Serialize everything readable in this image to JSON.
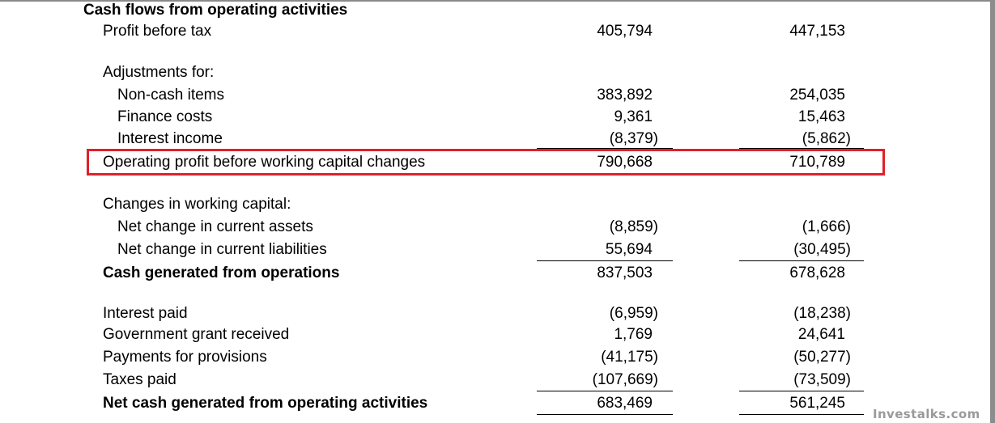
{
  "statement": {
    "title": "Cash flows from operating activities",
    "rows": {
      "profit_before_tax": {
        "label": "Profit before tax",
        "v1": "405,794",
        "v2": "447,153"
      },
      "adjustments_header": {
        "label": "Adjustments for:"
      },
      "non_cash_items": {
        "label": "Non-cash items",
        "v1": "383,892",
        "v2": "254,035"
      },
      "finance_costs": {
        "label": "Finance costs",
        "v1": "9,361",
        "v2": "15,463"
      },
      "interest_income": {
        "label": "Interest income",
        "v1": "(8,379)",
        "v2": "(5,862)"
      },
      "operating_profit": {
        "label": "Operating profit before working capital changes",
        "v1": "790,668",
        "v2": "710,789"
      },
      "working_capital_header": {
        "label": "Changes in working capital:"
      },
      "current_assets": {
        "label": "Net change in current assets",
        "v1": "(8,859)",
        "v2": "(1,666)"
      },
      "current_liabilities": {
        "label": "Net change in current liabilities",
        "v1": "55,694",
        "v2": "(30,495)"
      },
      "cash_generated": {
        "label": "Cash generated from operations",
        "v1": "837,503",
        "v2": "678,628"
      },
      "interest_paid": {
        "label": "Interest paid",
        "v1": "(6,959)",
        "v2": "(18,238)"
      },
      "government_grant": {
        "label": "Government grant received",
        "v1": "1,769",
        "v2": "24,641"
      },
      "provisions": {
        "label": "Payments for provisions",
        "v1": "(41,175)",
        "v2": "(50,277)"
      },
      "taxes_paid": {
        "label": "Taxes paid",
        "v1": "(107,669)",
        "v2": "(73,509)"
      },
      "net_cash": {
        "label": "Net cash generated from operating activities",
        "v1": "683,469",
        "v2": "561,245"
      }
    },
    "highlight_color": "#e0202a"
  },
  "watermark": "Investalks.com"
}
